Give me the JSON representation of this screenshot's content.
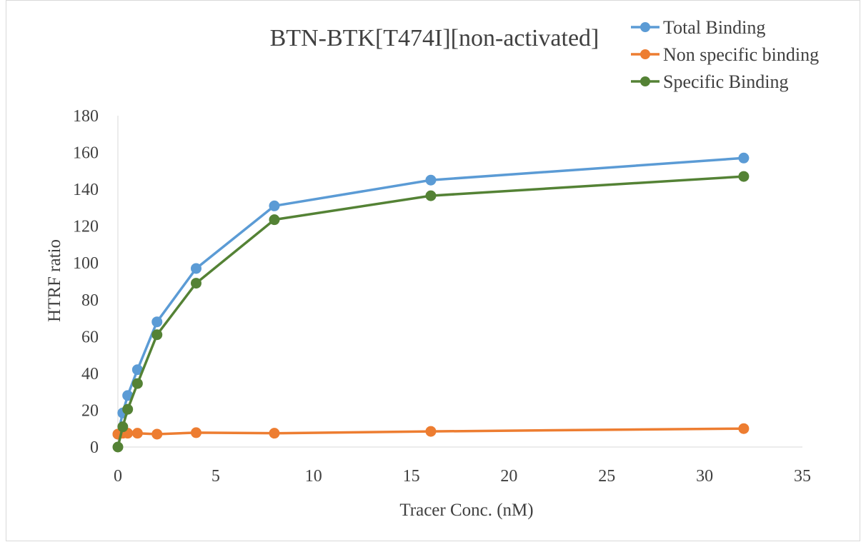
{
  "chart_data": {
    "type": "line",
    "title": "BTN-BTK[T474I][non-activated]",
    "xlabel": "Tracer Conc. (nM)",
    "ylabel": "HTRF ratio",
    "xlim": [
      0,
      35
    ],
    "ylim": [
      0,
      180
    ],
    "x_ticks": [
      0,
      5,
      10,
      15,
      20,
      25,
      30,
      35
    ],
    "y_ticks": [
      0,
      20,
      40,
      60,
      80,
      100,
      120,
      140,
      160,
      180
    ],
    "grid": false,
    "legend_position": "top-right",
    "x": [
      0,
      0.25,
      0.5,
      1,
      2,
      4,
      8,
      16,
      32
    ],
    "series": [
      {
        "name": "Total Binding",
        "color": "#5B9BD5",
        "values": [
          7,
          18.5,
          28,
          42,
          68,
          97,
          131,
          145,
          157
        ]
      },
      {
        "name": "Non specific binding",
        "color": "#ED7D31",
        "values": [
          7,
          7.5,
          7.5,
          7.5,
          7,
          7.8,
          7.5,
          8.5,
          10
        ]
      },
      {
        "name": "Specific Binding",
        "color": "#548235",
        "values": [
          0,
          11,
          20.5,
          34.5,
          61,
          89,
          123.5,
          136.5,
          147
        ]
      }
    ]
  }
}
